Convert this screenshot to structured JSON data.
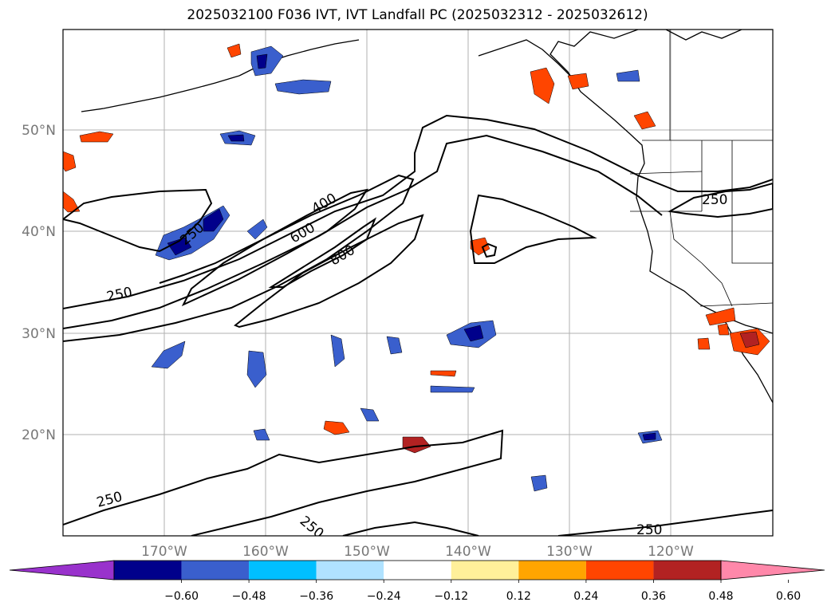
{
  "title": "2025032100 F036 IVT, IVT Landfall PC (2025032312 - 2025032612)",
  "axes": {
    "x_ticks": [
      "170°W",
      "160°W",
      "150°W",
      "140°W",
      "130°W",
      "120°W"
    ],
    "y_ticks": [
      "20°N",
      "30°N",
      "40°N",
      "50°N"
    ]
  },
  "contour_labels": [
    "250",
    "400",
    "600",
    "800",
    "250",
    "250",
    "250",
    "250",
    "250"
  ],
  "colorbar": {
    "colors": [
      "#9932cc",
      "#00008b",
      "#3a5fcd",
      "#00bfff",
      "#b0e2ff",
      "#ffffff",
      "#fff09a",
      "#ffa500",
      "#ff4500",
      "#b22222",
      "#ff88aa"
    ],
    "labels": [
      "−0.60",
      "−0.48",
      "−0.36",
      "−0.24",
      "−0.12",
      "0.12",
      "0.24",
      "0.36",
      "0.48",
      "0.60"
    ]
  }
}
